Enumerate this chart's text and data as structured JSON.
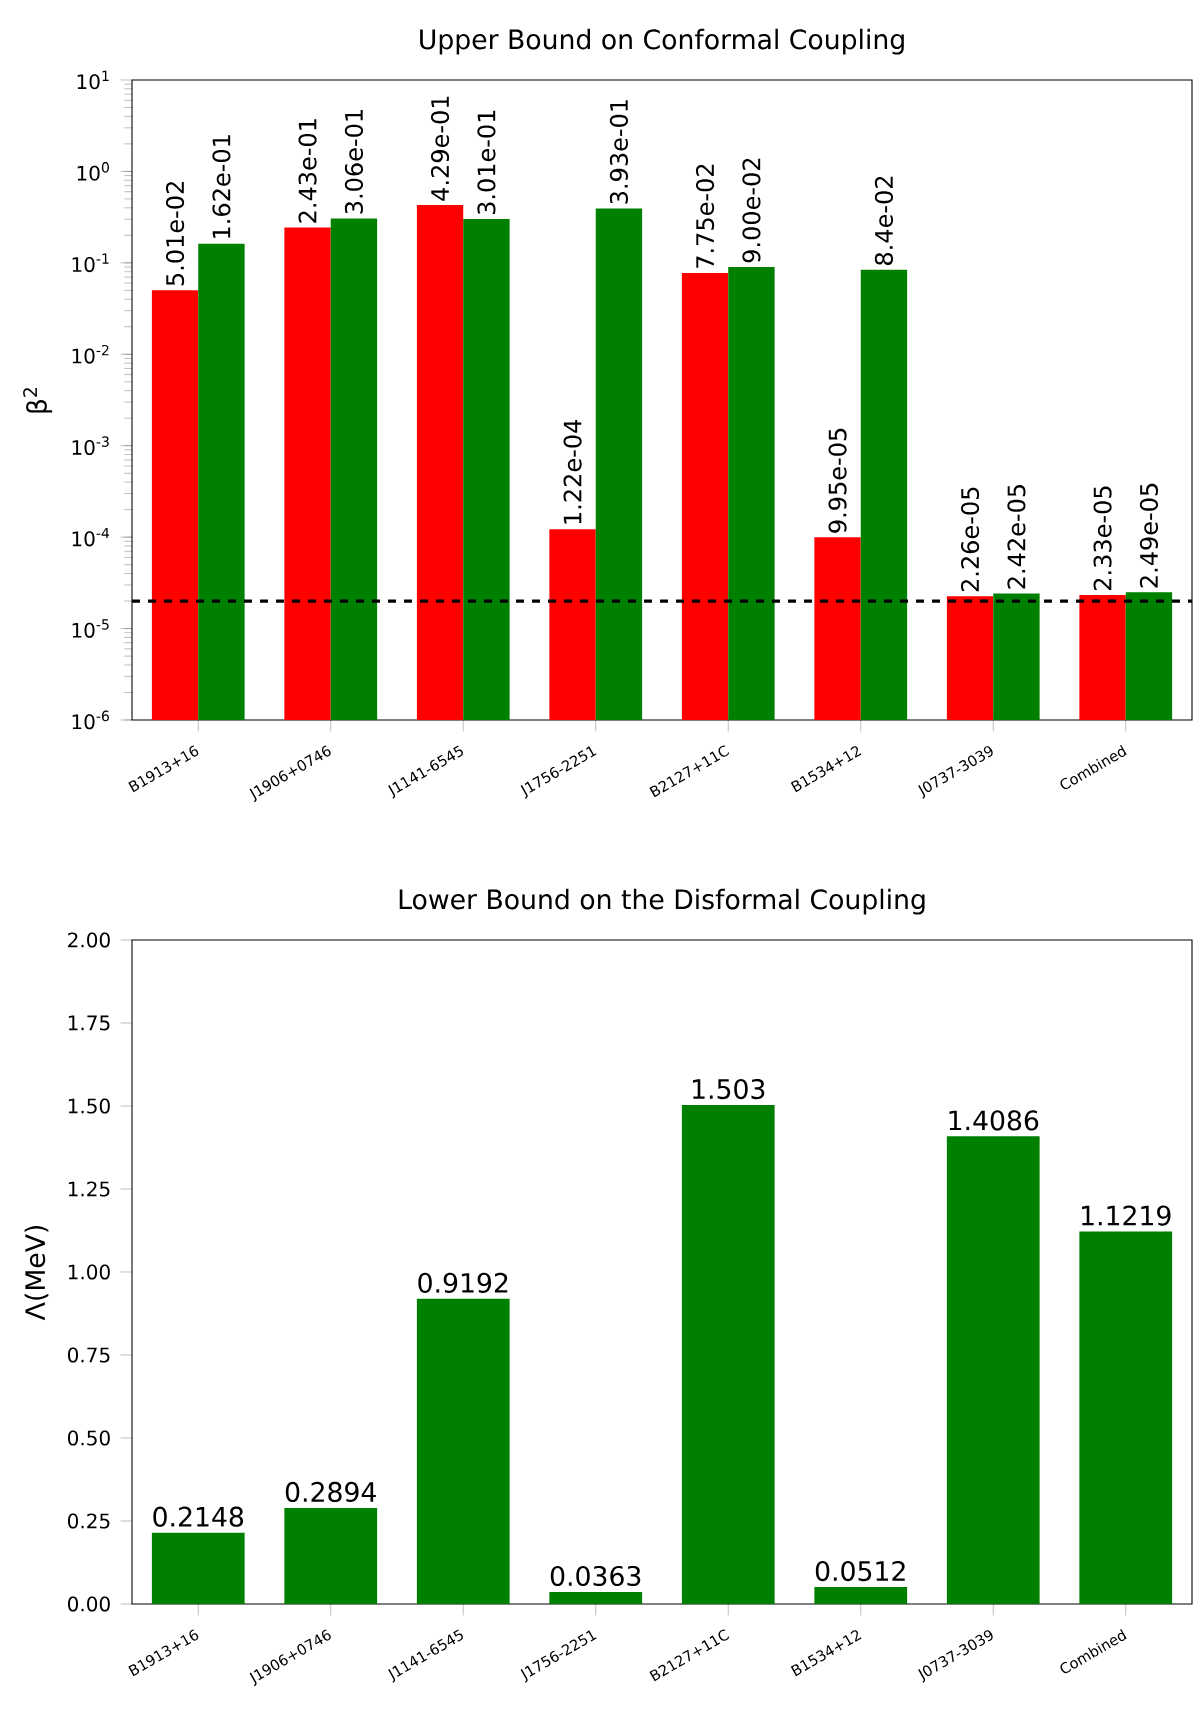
{
  "chart_data": [
    {
      "type": "bar",
      "title": "Upper Bound on Conformal Coupling",
      "ylabel": "β$^{2}$",
      "log": "y",
      "categories": [
        "B1913+16",
        "J1906+0746",
        "J1141-6545",
        "J1756-2251",
        "B2127+11C",
        "B1534+12",
        "J0737-3039",
        "Combined"
      ],
      "series": [
        {
          "color": "#ff0000",
          "values": [
            0.0501,
            0.243,
            0.429,
            0.000122,
            0.0775,
            9.95e-05,
            2.26e-05,
            2.33e-05
          ],
          "value_labels": [
            "5.01e-02",
            "2.43e-01",
            "4.29e-01",
            "1.22e-04",
            "7.75e-02",
            "9.95e-05",
            "2.26e-05",
            "2.33e-05"
          ]
        },
        {
          "color": "#008000",
          "values": [
            0.162,
            0.306,
            0.301,
            0.393,
            0.09,
            0.084,
            2.42e-05,
            2.49e-05
          ],
          "value_labels": [
            "1.62e-01",
            "3.06e-01",
            "3.01e-01",
            "3.93e-01",
            "9.00e-02",
            "8.4e-02",
            "2.42e-05",
            "2.49e-05"
          ]
        }
      ],
      "ylim": [
        1e-06,
        10
      ],
      "yticks": [
        {
          "value": 1e-06,
          "label": "10$^{-6}$"
        },
        {
          "value": 1e-05,
          "label": "10$^{-5}$"
        },
        {
          "value": 0.0001,
          "label": "10$^{-4}$"
        },
        {
          "value": 0.001,
          "label": "10$^{-3}$"
        },
        {
          "value": 0.01,
          "label": "10$^{-2}$"
        },
        {
          "value": 0.1,
          "label": "10$^{-1}$"
        },
        {
          "value": 1,
          "label": "10$^{0}$"
        },
        {
          "value": 10,
          "label": "10$^{1}$"
        }
      ],
      "ref_lines": [
        {
          "axis": "y",
          "value": 2e-05,
          "color": "#000000",
          "line_style": "dashed"
        }
      ]
    },
    {
      "type": "bar",
      "title": "Lower Bound on the Disformal Coupling",
      "ylabel": "Λ(MeV)",
      "categories": [
        "B1913+16",
        "J1906+0746",
        "J1141-6545",
        "J1756-2251",
        "B2127+11C",
        "B1534+12",
        "J0737-3039",
        "Combined"
      ],
      "series": [
        {
          "color": "#008000",
          "values": [
            0.2148,
            0.2894,
            0.9192,
            0.0363,
            1.503,
            0.0512,
            1.4086,
            1.1219
          ],
          "value_labels": [
            "0.2148",
            "0.2894",
            "0.9192",
            "0.0363",
            "1.503",
            "0.0512",
            "1.4086",
            "1.1219"
          ]
        }
      ],
      "ylim": [
        0,
        2
      ],
      "yticks": [
        {
          "value": 0,
          "label": "0.00"
        },
        {
          "value": 0.25,
          "label": "0.25"
        },
        {
          "value": 0.5,
          "label": "0.50"
        },
        {
          "value": 0.75,
          "label": "0.75"
        },
        {
          "value": 1,
          "label": "1.00"
        },
        {
          "value": 1.25,
          "label": "1.25"
        },
        {
          "value": 1.5,
          "label": "1.50"
        },
        {
          "value": 1.75,
          "label": "1.75"
        },
        {
          "value": 2,
          "label": "2.00"
        }
      ]
    }
  ]
}
